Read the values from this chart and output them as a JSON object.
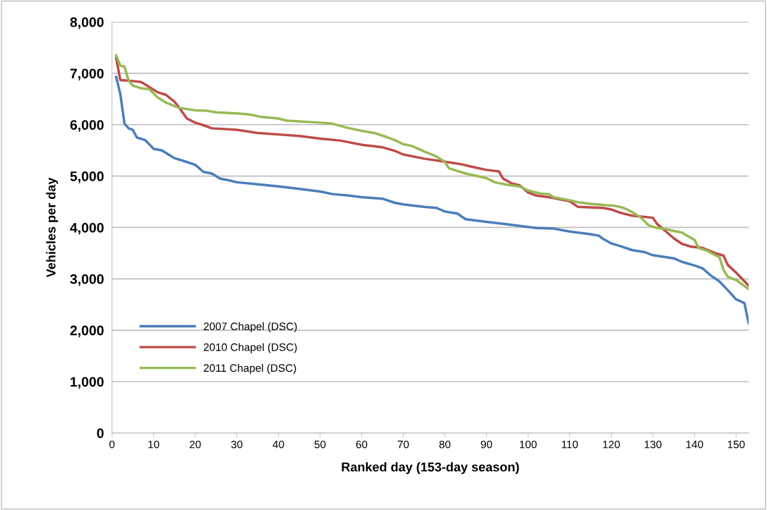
{
  "chart_data": {
    "type": "line",
    "xlabel": "Ranked day (153-day season)",
    "ylabel": "Vehicles per day",
    "xlim": [
      0,
      153
    ],
    "xticks": [
      0,
      10,
      20,
      30,
      40,
      50,
      60,
      70,
      80,
      90,
      100,
      110,
      120,
      130,
      140,
      150
    ],
    "ylim": [
      0,
      8000
    ],
    "yticks": [
      {
        "value": 0,
        "label": "0"
      },
      {
        "value": 1000,
        "label": "1,000"
      },
      {
        "value": 2000,
        "label": "2,000"
      },
      {
        "value": 3000,
        "label": "3,000"
      },
      {
        "value": 4000,
        "label": "4,000"
      },
      {
        "value": 5000,
        "label": "5,000"
      },
      {
        "value": 6000,
        "label": "6,000"
      },
      {
        "value": 7000,
        "label": "7,000"
      },
      {
        "value": 8000,
        "label": "8,000"
      }
    ],
    "grid": "y",
    "legend": "lower left",
    "marker": "none",
    "line_style": "solid",
    "series": [
      {
        "name": "2007 Chapel (DSC)",
        "color": "#4a7ebb",
        "x": [
          1,
          2,
          3,
          4,
          5,
          6,
          8,
          10,
          12,
          14,
          15,
          17,
          20,
          22,
          24,
          26,
          28,
          30,
          35,
          40,
          45,
          50,
          53,
          57,
          60,
          65,
          68,
          70,
          75,
          78,
          80,
          83,
          85,
          90,
          95,
          100,
          102,
          106,
          110,
          115,
          117,
          118,
          120,
          122,
          125,
          128,
          130,
          135,
          137,
          140,
          142,
          144,
          146,
          148,
          150,
          152,
          153
        ],
        "values": [
          6930,
          6600,
          6020,
          5930,
          5900,
          5750,
          5700,
          5530,
          5500,
          5400,
          5350,
          5300,
          5220,
          5080,
          5050,
          4950,
          4920,
          4880,
          4840,
          4800,
          4750,
          4700,
          4650,
          4620,
          4590,
          4560,
          4480,
          4450,
          4400,
          4380,
          4310,
          4270,
          4160,
          4110,
          4060,
          4010,
          3990,
          3980,
          3920,
          3870,
          3840,
          3780,
          3690,
          3640,
          3560,
          3520,
          3460,
          3400,
          3330,
          3260,
          3200,
          3060,
          2950,
          2780,
          2600,
          2530,
          2140
        ]
      },
      {
        "name": "2010 Chapel (DSC)",
        "color": "#be4b48",
        "x": [
          1,
          2,
          5,
          7,
          9,
          11,
          13,
          15,
          16,
          18,
          20,
          22,
          24,
          30,
          35,
          40,
          45,
          50,
          55,
          60,
          65,
          68,
          70,
          75,
          80,
          84,
          86,
          90,
          93,
          94,
          96,
          98,
          100,
          102,
          105,
          110,
          112,
          118,
          120,
          122,
          125,
          130,
          131,
          133,
          135,
          137,
          139,
          142,
          145,
          147,
          148,
          150,
          153
        ],
        "values": [
          7300,
          6870,
          6850,
          6830,
          6730,
          6630,
          6580,
          6450,
          6350,
          6120,
          6040,
          5990,
          5930,
          5900,
          5840,
          5810,
          5780,
          5730,
          5690,
          5610,
          5560,
          5490,
          5420,
          5340,
          5280,
          5230,
          5190,
          5120,
          5090,
          4950,
          4860,
          4820,
          4680,
          4620,
          4590,
          4510,
          4400,
          4380,
          4350,
          4290,
          4230,
          4190,
          4070,
          3930,
          3790,
          3680,
          3630,
          3600,
          3500,
          3450,
          3270,
          3120,
          2870
        ]
      },
      {
        "name": "2011 Chapel (DSC)",
        "color": "#98b954",
        "x": [
          1,
          2,
          3,
          4,
          5,
          7,
          9,
          11,
          13,
          16,
          20,
          23,
          25,
          30,
          33,
          36,
          40,
          42,
          50,
          53,
          56,
          60,
          63,
          66,
          68,
          70,
          72,
          75,
          78,
          80,
          81,
          85,
          90,
          92,
          95,
          98,
          100,
          103,
          105,
          106,
          110,
          112,
          115,
          118,
          121,
          123,
          125,
          127,
          129,
          131,
          133,
          135,
          137,
          138,
          140,
          141,
          143,
          145,
          146,
          147,
          148,
          150,
          153
        ],
        "values": [
          7350,
          7150,
          7130,
          6860,
          6760,
          6710,
          6690,
          6530,
          6430,
          6330,
          6280,
          6270,
          6240,
          6220,
          6200,
          6150,
          6120,
          6080,
          6040,
          6020,
          5950,
          5880,
          5840,
          5760,
          5700,
          5620,
          5590,
          5480,
          5380,
          5280,
          5150,
          5050,
          4960,
          4880,
          4830,
          4800,
          4720,
          4660,
          4650,
          4590,
          4530,
          4490,
          4460,
          4440,
          4420,
          4380,
          4300,
          4200,
          4040,
          3990,
          3970,
          3930,
          3900,
          3850,
          3760,
          3600,
          3550,
          3460,
          3420,
          3170,
          3040,
          2980,
          2800
        ]
      }
    ]
  }
}
